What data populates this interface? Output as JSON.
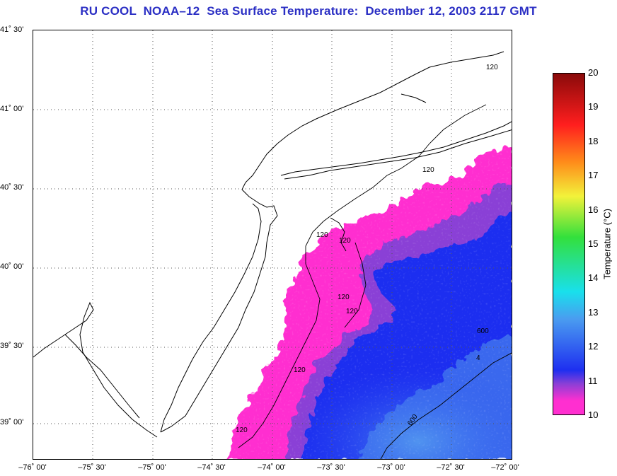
{
  "title": "RU COOL  NOAA–12  Sea Surface Temperature:  December 12, 2003 2117 GMT",
  "lat_labels": [
    "41˚ 30'",
    "41˚ 00'",
    "40˚ 30'",
    "40˚ 00'",
    "39˚ 30'",
    "39˚ 00'"
  ],
  "lon_labels": [
    "–76˚ 00'",
    "–75˚ 30'",
    "–75˚ 00'",
    "–74˚ 30'",
    "–74˚ 00'",
    "–73˚ 30'",
    "–73˚ 00'",
    "–72˚ 30'",
    "–72˚ 00'"
  ],
  "colorbar": {
    "label": "Temperature (°C)",
    "ticks": [
      "20",
      "19",
      "18",
      "17",
      "16",
      "15",
      "14",
      "13",
      "12",
      "11",
      "10"
    ],
    "min": 10,
    "max": 20,
    "colors": {
      "cold": "#ff2fd0",
      "cool_violet": "#8a3fd6",
      "blue": "#1e2ff0",
      "light_blue": "#4a9cf0",
      "cyan": "#19e0ec",
      "green": "#33e03c",
      "yellow": "#f2f23a",
      "orange": "#ff8c1a",
      "red": "#ff1e1e",
      "dark_red": "#8a0a0a"
    }
  },
  "contours": {
    "isobath_120": "120",
    "isobath_600": "600",
    "isobath_other": "4"
  },
  "map": {
    "bounds": {
      "west": -76.0,
      "east": -72.0,
      "south": 38.75,
      "north": 41.5
    },
    "land_color": "#ffffff",
    "grid": "dotted"
  }
}
